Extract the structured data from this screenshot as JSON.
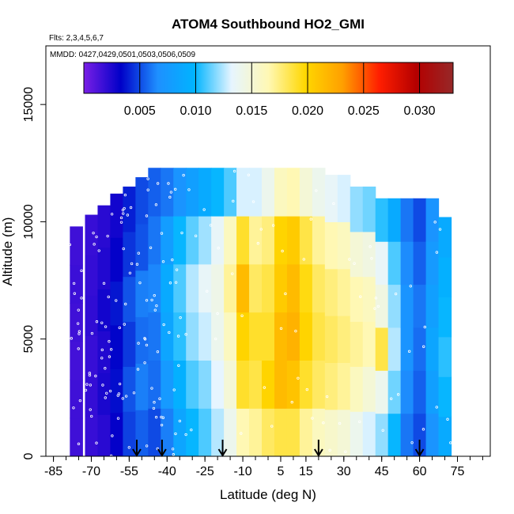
{
  "chart_data": {
    "type": "heatmap",
    "title": "ATOM4 Southbound HO2_GMI",
    "flights_note": "Flts: 2,3,4,5,6,7",
    "dates_note": "MMDD: 0427,0429,0501,0503,0506,0509",
    "xlabel": "Latitude (deg N)",
    "ylabel": "Altitude (m)",
    "xlim": [
      -88,
      88
    ],
    "ylim": [
      0,
      17500
    ],
    "x_ticks": [
      -85,
      -70,
      -55,
      -40,
      -25,
      -10,
      5,
      15,
      30,
      45,
      60,
      75
    ],
    "x_tick_labels": [
      "-85",
      "-70",
      "-55",
      "-40",
      "-25",
      "-10",
      "5",
      "15",
      "30",
      "45",
      "60",
      "75"
    ],
    "y_ticks": [
      0,
      5000,
      10000,
      15000
    ],
    "y_tick_labels": [
      "0",
      "5000",
      "10000",
      "15000"
    ],
    "colorbar": {
      "min": 0.0,
      "max": 0.033,
      "ticks": [
        0.005,
        0.01,
        0.015,
        0.02,
        0.025,
        0.03
      ],
      "tick_labels": [
        "0.005",
        "0.010",
        "0.015",
        "0.020",
        "0.025",
        "0.030"
      ],
      "stops": [
        "#7a1fe6",
        "#0000c8",
        "#1e90ff",
        "#00b4ff",
        "#e6f5ff",
        "#fff8b4",
        "#ffd700",
        "#ffa000",
        "#ff1e00",
        "#b40000",
        "#962828"
      ]
    },
    "arrow_latitudes": [
      -52,
      -42,
      -18,
      20,
      60
    ],
    "columns": [
      {
        "lat": -76,
        "top": 9800,
        "v": [
          0.0016,
          0.0016,
          0.0015,
          0.0016,
          0.0017,
          0.0016
        ]
      },
      {
        "lat": -70,
        "top": 10300,
        "v": [
          0.0018,
          0.0019,
          0.0018,
          0.002,
          0.0019,
          0.0018
        ]
      },
      {
        "lat": -65,
        "top": 10700,
        "v": [
          0.0022,
          0.0026,
          0.0024,
          0.0028,
          0.0024,
          0.0022
        ]
      },
      {
        "lat": -60,
        "top": 11200,
        "v": [
          0.0032,
          0.0036,
          0.0034,
          0.0038,
          0.0032,
          0.0028
        ]
      },
      {
        "lat": -55,
        "top": 11500,
        "v": [
          0.0048,
          0.0052,
          0.0046,
          0.0052,
          0.0045,
          0.004
        ]
      },
      {
        "lat": -50,
        "top": 11900,
        "v": [
          0.0055,
          0.0062,
          0.0058,
          0.0062,
          0.0052,
          0.005
        ]
      },
      {
        "lat": -45,
        "top": 12300,
        "v": [
          0.005,
          0.0058,
          0.006,
          0.0064,
          0.006,
          0.0055
        ]
      },
      {
        "lat": -40,
        "top": 12300,
        "v": [
          0.0062,
          0.0075,
          0.0085,
          0.009,
          0.0078,
          0.006
        ]
      },
      {
        "lat": -35,
        "top": 12300,
        "v": [
          0.0085,
          0.0095,
          0.0105,
          0.011,
          0.01,
          0.007
        ]
      },
      {
        "lat": -30,
        "top": 12300,
        "v": [
          0.01,
          0.011,
          0.012,
          0.0125,
          0.0112,
          0.008
        ]
      },
      {
        "lat": -25,
        "top": 12300,
        "v": [
          0.011,
          0.0118,
          0.0128,
          0.0135,
          0.0122,
          0.009
        ]
      },
      {
        "lat": -20,
        "top": 12300,
        "v": [
          0.0125,
          0.0132,
          0.014,
          0.0142,
          0.0135,
          0.01
        ]
      },
      {
        "lat": -15,
        "top": 12300,
        "v": [
          0.014,
          0.015,
          0.016,
          0.017,
          0.016,
          0.011
        ]
      },
      {
        "lat": -10,
        "top": 12300,
        "v": [
          0.0165,
          0.019,
          0.02,
          0.0215,
          0.019,
          0.013
        ]
      },
      {
        "lat": -5,
        "top": 12300,
        "v": [
          0.017,
          0.0185,
          0.019,
          0.018,
          0.017,
          0.013
        ]
      },
      {
        "lat": 0,
        "top": 12300,
        "v": [
          0.018,
          0.02,
          0.019,
          0.0185,
          0.0175,
          0.014
        ]
      },
      {
        "lat": 5,
        "top": 12300,
        "v": [
          0.0185,
          0.0215,
          0.0215,
          0.0205,
          0.02,
          0.016
        ]
      },
      {
        "lat": 10,
        "top": 12300,
        "v": [
          0.0185,
          0.021,
          0.022,
          0.0215,
          0.0205,
          0.0165
        ]
      },
      {
        "lat": 15,
        "top": 12300,
        "v": [
          0.017,
          0.019,
          0.02,
          0.0195,
          0.0185,
          0.015
        ]
      },
      {
        "lat": 20,
        "top": 12300,
        "v": [
          0.016,
          0.018,
          0.0185,
          0.018,
          0.017,
          0.014
        ]
      },
      {
        "lat": 25,
        "top": 12000,
        "v": [
          0.0155,
          0.0175,
          0.018,
          0.0175,
          0.0165,
          0.0135
        ]
      },
      {
        "lat": 30,
        "top": 12000,
        "v": [
          0.015,
          0.017,
          0.0175,
          0.017,
          0.016,
          0.013
        ]
      },
      {
        "lat": 35,
        "top": 11500,
        "v": [
          0.014,
          0.016,
          0.017,
          0.0165,
          0.015,
          0.012
        ]
      },
      {
        "lat": 40,
        "top": 11500,
        "v": [
          0.013,
          0.015,
          0.0165,
          0.016,
          0.0145,
          0.0115
        ]
      },
      {
        "lat": 45,
        "top": 11000,
        "v": [
          0.012,
          0.014,
          0.0185,
          0.0145,
          0.0135,
          0.0105
        ]
      },
      {
        "lat": 50,
        "top": 11000,
        "v": [
          0.01,
          0.0115,
          0.0125,
          0.012,
          0.011,
          0.009
        ]
      },
      {
        "lat": 55,
        "top": 11000,
        "v": [
          0.006,
          0.0065,
          0.007,
          0.007,
          0.0065,
          0.006
        ]
      },
      {
        "lat": 60,
        "top": 11000,
        "v": [
          0.005,
          0.0055,
          0.0058,
          0.006,
          0.0055,
          0.005
        ]
      },
      {
        "lat": 65,
        "top": 11000,
        "v": [
          0.007,
          0.008,
          0.0085,
          0.008,
          0.0075,
          0.007
        ]
      },
      {
        "lat": 70,
        "top": 10200,
        "v": [
          0.009,
          0.01,
          0.0105,
          0.01,
          0.0095,
          0.009
        ]
      }
    ]
  }
}
